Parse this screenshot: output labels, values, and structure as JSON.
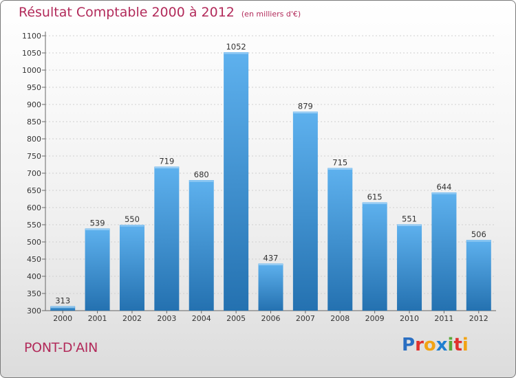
{
  "title": "Résultat Comptable 2000 à 2012",
  "subtitle": "(en milliers d'€)",
  "commune": "PONT-D'AIN",
  "logo": {
    "text": "Proxiti",
    "letters": [
      {
        "ch": "P",
        "color": "#2a6fc2"
      },
      {
        "ch": "r",
        "color": "#e0312e"
      },
      {
        "ch": "o",
        "color": "#f2a313"
      },
      {
        "ch": "x",
        "color": "#1f7fd0"
      },
      {
        "ch": "i",
        "color": "#5aa83a"
      },
      {
        "ch": "t",
        "color": "#e0312e"
      },
      {
        "ch": "i",
        "color": "#f2a313"
      }
    ]
  },
  "colors": {
    "bar_top": "#5eb1ee",
    "bar_bottom": "#2471b0",
    "title": "#b22a5a",
    "grid": "#cfcfcf"
  },
  "chart_data": {
    "type": "bar",
    "title": "Résultat Comptable 2000 à 2012",
    "subtitle": "(en milliers d'€)",
    "xlabel": "",
    "ylabel": "",
    "categories": [
      "2000",
      "2001",
      "2002",
      "2003",
      "2004",
      "2005",
      "2006",
      "2007",
      "2008",
      "2009",
      "2010",
      "2011",
      "2012"
    ],
    "values": [
      313,
      539,
      550,
      719,
      680,
      1052,
      437,
      879,
      715,
      615,
      551,
      644,
      506
    ],
    "ylim": [
      300,
      1100
    ],
    "ytick_step": 50,
    "grid": true
  }
}
